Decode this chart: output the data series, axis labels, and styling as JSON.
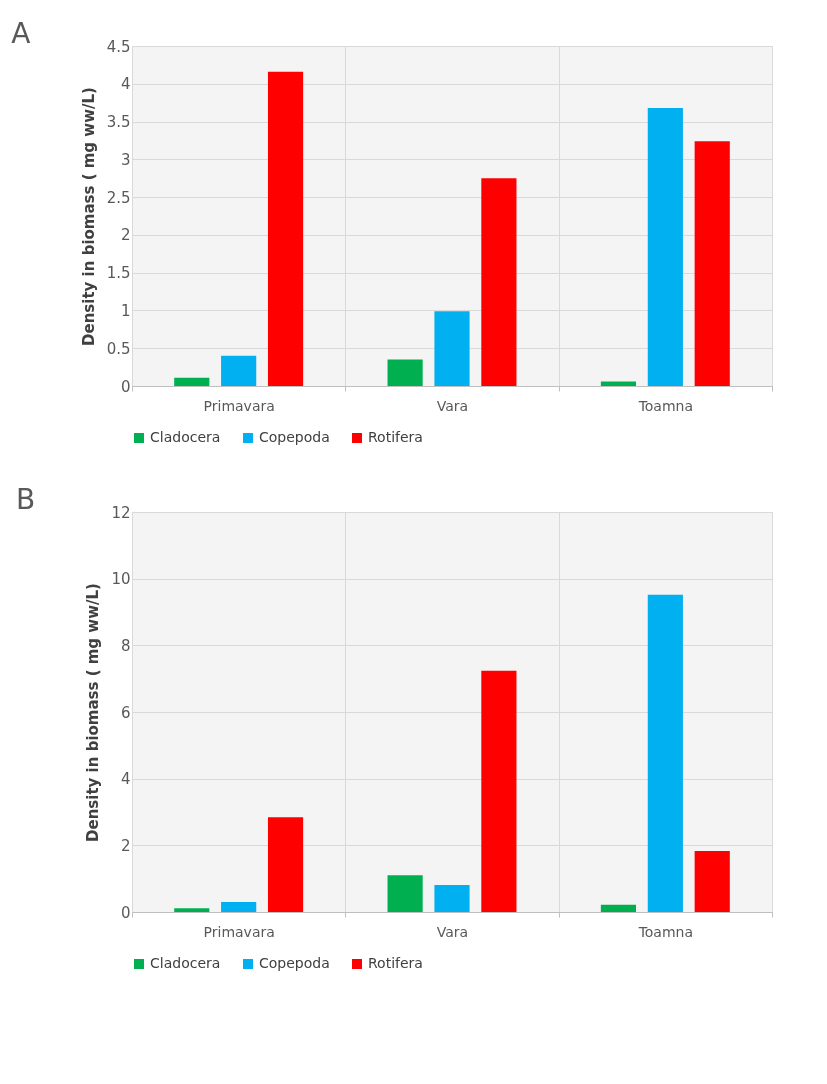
{
  "chart_data": [
    {
      "type": "bar",
      "title": "A",
      "ylabel": "Density in biomass ( mg ww/L)",
      "categories": [
        "Primavara",
        "Vara",
        "Toamna"
      ],
      "series": [
        {
          "name": "Cladocera",
          "color": "#00b050",
          "values": [
            0.11,
            0.35,
            0.06
          ]
        },
        {
          "name": "Copepoda",
          "color": "#00b0f0",
          "values": [
            0.4,
            0.99,
            3.68
          ]
        },
        {
          "name": "Rotifera",
          "color": "#ff0000",
          "values": [
            4.16,
            2.75,
            3.24
          ]
        }
      ],
      "ylim": [
        0,
        4.5
      ],
      "yticks": [
        0,
        0.5,
        1,
        1.5,
        2,
        2.5,
        3,
        3.5,
        4,
        4.5
      ],
      "grid": true,
      "legend": "bottom"
    },
    {
      "type": "bar",
      "title": "B",
      "ylabel": "Density in biomass ( mg ww/L)",
      "categories": [
        "Primavara",
        "Vara",
        "Toamna"
      ],
      "series": [
        {
          "name": "Cladocera",
          "color": "#00b050",
          "values": [
            0.11,
            1.1,
            0.22
          ]
        },
        {
          "name": "Copepoda",
          "color": "#00b0f0",
          "values": [
            0.3,
            0.81,
            9.52
          ]
        },
        {
          "name": "Rotifera",
          "color": "#ff0000",
          "values": [
            2.84,
            7.24,
            1.83
          ]
        }
      ],
      "ylim": [
        0,
        12
      ],
      "yticks": [
        0,
        2,
        4,
        6,
        8,
        10,
        12
      ],
      "grid": true,
      "legend": "bottom"
    }
  ]
}
